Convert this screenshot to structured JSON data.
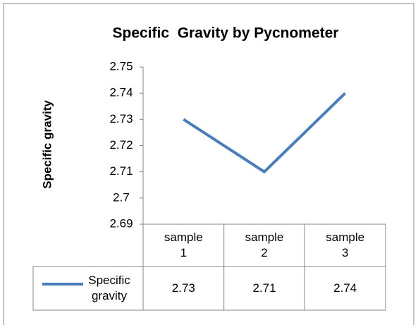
{
  "chart_data": {
    "type": "line",
    "title": "Specific  Gravity by Pycnometer",
    "y_label": "Specific gravity",
    "categories": [
      "sample 1",
      "sample 2",
      "sample 3"
    ],
    "series": [
      {
        "name": "Specific gravity",
        "color": "#4a7ebb",
        "values": [
          2.73,
          2.71,
          2.74
        ]
      }
    ],
    "ylim": [
      2.69,
      2.75
    ],
    "yticks": [
      2.69,
      2.7,
      2.71,
      2.72,
      2.73,
      2.74,
      2.75
    ],
    "grid": false,
    "data_table": true
  }
}
